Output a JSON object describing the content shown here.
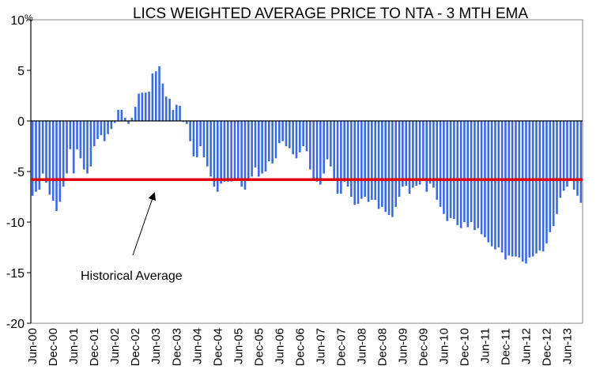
{
  "chart_data": {
    "type": "bar",
    "title": "LICS WEIGHTED AVERAGE PRICE TO NTA - 3 MTH EMA",
    "xlabel": "",
    "ylabel": "%",
    "y_unit_label": "%",
    "ylim": [
      -20,
      10
    ],
    "yticks": [
      10,
      5,
      0,
      -5,
      -10,
      -15,
      -20
    ],
    "ytick_labels": [
      "10",
      "5",
      "0",
      "-5",
      "-10",
      "-15",
      "-20"
    ],
    "grid": false,
    "legend": "none",
    "x_start": "Jun-00",
    "x_end": "Jun-13",
    "frequency": "monthly",
    "xtick_labels": [
      "Jun-00",
      "Dec-00",
      "Jun-01",
      "Dec-01",
      "Jun-02",
      "Dec-02",
      "Jun-03",
      "Dec-03",
      "Jun-04",
      "Dec-04",
      "Jun-05",
      "Dec-05",
      "Jun-06",
      "Dec-06",
      "Jun-07",
      "Dec-07",
      "Jun-08",
      "Dec-08",
      "Jun-09",
      "Dec-09",
      "Jun-10",
      "Dec-10",
      "Jun-11",
      "Dec-11",
      "Jun-12",
      "Dec-12",
      "Jun-13"
    ],
    "series": [
      {
        "name": "LICS weighted average price to NTA (3 mth EMA)",
        "color": "#3A6BE0",
        "values": [
          -7.4,
          -7.0,
          -6.8,
          -5.2,
          -6.1,
          -7.3,
          -7.9,
          -8.9,
          -8.0,
          -6.5,
          -5.2,
          -2.8,
          -5.2,
          -2.8,
          -3.7,
          -4.8,
          -5.2,
          -4.5,
          -2.5,
          -1.8,
          -1.4,
          -2.0,
          -1.3,
          -0.8,
          -0.2,
          1.1,
          1.1,
          0.3,
          -0.3,
          0.3,
          1.4,
          2.7,
          2.8,
          2.8,
          2.9,
          4.7,
          4.9,
          5.4,
          3.7,
          2.4,
          2.2,
          1.1,
          1.6,
          1.5,
          -0.1,
          -0.3,
          -2.0,
          -3.5,
          -3.6,
          -2.5,
          -3.6,
          -4.5,
          -5.5,
          -6.5,
          -7.0,
          -6.2,
          -6.0,
          -6.0,
          -6.0,
          -5.9,
          -5.9,
          -6.5,
          -6.8,
          -5.8,
          -5.5,
          -4.6,
          -5.5,
          -5.2,
          -5.0,
          -4.0,
          -4.2,
          -3.7,
          -2.2,
          -2.0,
          -2.5,
          -2.7,
          -3.3,
          -3.7,
          -3.1,
          -2.5,
          -3.0,
          -4.8,
          -5.8,
          -6.0,
          -6.3,
          -5.2,
          -3.8,
          -4.5,
          -5.8,
          -7.2,
          -7.2,
          -6.0,
          -6.5,
          -7.5,
          -8.3,
          -8.2,
          -7.7,
          -7.5,
          -8.0,
          -7.8,
          -7.8,
          -8.7,
          -8.5,
          -9.0,
          -9.3,
          -9.5,
          -8.5,
          -7.5,
          -6.5,
          -6.4,
          -7.2,
          -6.6,
          -6.4,
          -6.3,
          -5.8,
          -7.0,
          -6.2,
          -6.6,
          -7.8,
          -8.5,
          -9.2,
          -9.9,
          -9.6,
          -9.7,
          -10.3,
          -10.6,
          -10.0,
          -10.5,
          -10.0,
          -10.8,
          -10.6,
          -11.2,
          -11.5,
          -12.0,
          -12.4,
          -12.7,
          -12.5,
          -13.0,
          -13.7,
          -13.3,
          -13.4,
          -13.4,
          -13.5,
          -13.9,
          -14.1,
          -13.5,
          -13.4,
          -13.1,
          -12.8,
          -12.9,
          -12.1,
          -11.0,
          -10.4,
          -9.2,
          -7.6,
          -6.9,
          -6.5,
          -5.9,
          -6.8,
          -7.4,
          -8.1
        ]
      }
    ],
    "reference_lines": [
      {
        "name": "Historical Average",
        "value": -5.8,
        "color": "#E00000"
      }
    ],
    "annotations": [
      {
        "text": "Historical Average",
        "points_to": "historical-average-line"
      }
    ]
  }
}
